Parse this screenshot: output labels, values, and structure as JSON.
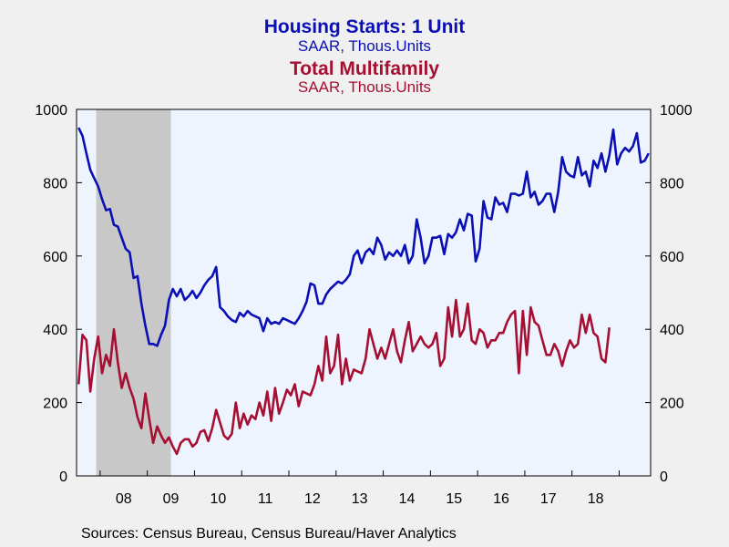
{
  "titles": {
    "series1_title": "Housing Starts: 1 Unit",
    "series1_subtitle": "SAAR, Thous.Units",
    "series2_title": "Total Multifamily",
    "series2_subtitle": "SAAR, Thous.Units"
  },
  "source_text": "Sources:  Census Bureau, Census Bureau/Haver Analytics",
  "colors": {
    "series1": "#0a10b4",
    "series2": "#a50f32",
    "plot_bg": "#eef4fe",
    "recession": "#c8c8c8",
    "page_bg": "#f0f0f0"
  },
  "chart_data": {
    "type": "line",
    "x_unit": "monthly, Jul 2007 – Sep 2018",
    "x_start": "2007-07",
    "xlabels": [
      "08",
      "09",
      "10",
      "11",
      "12",
      "13",
      "14",
      "15",
      "16",
      "17",
      "18"
    ],
    "ylim": [
      0,
      1000
    ],
    "yticks_left": [
      "0",
      "200",
      "400",
      "600",
      "800",
      "1000"
    ],
    "yticks_right": [
      "0",
      "200",
      "400",
      "600",
      "800",
      "1000"
    ],
    "recession": {
      "start": "2007-12",
      "end": "2009-06"
    },
    "grid": false,
    "legend": "title-based (top-center)",
    "series": [
      {
        "name": "Housing Starts: 1 Unit",
        "color": "#0a10b4",
        "axis": "left",
        "values": [
          950,
          928,
          880,
          835,
          812,
          790,
          755,
          725,
          728,
          685,
          680,
          650,
          620,
          610,
          540,
          545,
          470,
          410,
          360,
          360,
          355,
          385,
          410,
          480,
          510,
          490,
          510,
          480,
          490,
          505,
          485,
          500,
          520,
          535,
          545,
          570,
          460,
          450,
          435,
          425,
          420,
          445,
          435,
          450,
          440,
          435,
          430,
          395,
          430,
          415,
          420,
          415,
          430,
          425,
          420,
          415,
          430,
          450,
          475,
          525,
          520,
          470,
          470,
          495,
          510,
          520,
          530,
          525,
          535,
          550,
          600,
          615,
          580,
          610,
          620,
          605,
          650,
          630,
          590,
          610,
          600,
          615,
          600,
          630,
          580,
          600,
          700,
          650,
          580,
          600,
          650,
          650,
          655,
          605,
          660,
          650,
          665,
          700,
          670,
          715,
          710,
          585,
          620,
          750,
          705,
          700,
          760,
          740,
          745,
          720,
          770,
          770,
          765,
          770,
          830,
          760,
          775,
          740,
          750,
          770,
          770,
          720,
          775,
          870,
          830,
          820,
          815,
          870,
          820,
          830,
          790,
          860,
          840,
          880,
          830,
          875,
          945,
          850,
          880,
          895,
          885,
          900,
          935,
          855,
          860,
          880
        ]
      },
      {
        "name": "Total Multifamily",
        "color": "#a50f32",
        "axis": "left",
        "values": [
          250,
          385,
          370,
          230,
          320,
          380,
          280,
          330,
          300,
          400,
          310,
          240,
          280,
          240,
          210,
          160,
          130,
          225,
          155,
          90,
          135,
          110,
          90,
          105,
          80,
          60,
          90,
          100,
          100,
          80,
          90,
          120,
          125,
          95,
          130,
          180,
          145,
          110,
          100,
          115,
          200,
          130,
          170,
          140,
          165,
          155,
          200,
          165,
          230,
          150,
          240,
          170,
          200,
          235,
          220,
          250,
          190,
          230,
          225,
          220,
          250,
          300,
          260,
          380,
          280,
          300,
          385,
          250,
          320,
          260,
          290,
          285,
          280,
          320,
          400,
          360,
          320,
          350,
          320,
          360,
          400,
          340,
          310,
          370,
          420,
          340,
          360,
          380,
          360,
          350,
          360,
          390,
          300,
          320,
          460,
          380,
          480,
          380,
          400,
          470,
          370,
          360,
          400,
          390,
          350,
          370,
          370,
          390,
          390,
          420,
          440,
          450,
          280,
          450,
          330,
          460,
          420,
          410,
          370,
          330,
          330,
          360,
          340,
          300,
          340,
          370,
          350,
          360,
          440,
          390,
          440,
          390,
          380,
          320,
          310,
          405
        ]
      }
    ]
  }
}
